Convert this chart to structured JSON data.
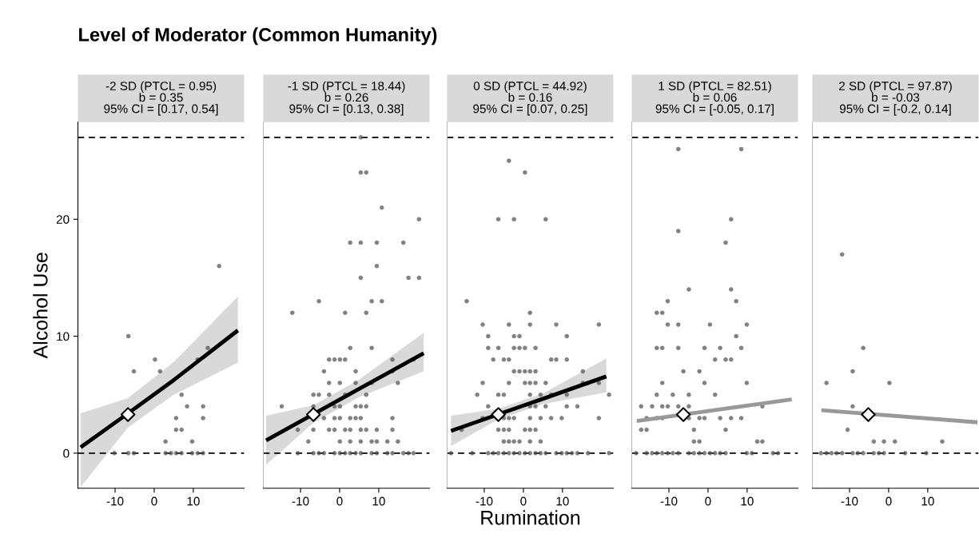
{
  "chart_data": [
    {
      "type": "scatter",
      "title": "-2 SD (PTCL = 0.95)\nb = 0.35\n95% CI = [0.17, 0.54]",
      "annotations": [
        "Level of Moderator (Common Humanity)"
      ],
      "ylabel": "Alcohol Use",
      "xlim": [
        -19.5,
        23
      ],
      "ylim": [
        -3,
        28.3
      ],
      "xticks": [
        -10,
        0,
        10
      ],
      "yticks": [
        0,
        10,
        20
      ],
      "ref_lines": [
        {
          "axis": "y",
          "value": 0,
          "color": "#000000",
          "line_style": "dashed"
        },
        {
          "axis": "y",
          "value": 27,
          "color": "#000000",
          "line_style": "dashed"
        }
      ],
      "series": [
        {
          "type": "scatter",
          "marker": "circle",
          "color": "#4d4d4d",
          "x": [
            16.6,
            -6.6,
            0.2,
            -5.2,
            1.5,
            13.7,
            11.1,
            7.0,
            8.4,
            12.5,
            12.5,
            5.6,
            5.6,
            7.0,
            2.9,
            9.7,
            -10.2,
            -6.6,
            -5.2,
            2.9,
            4.3,
            5.6,
            7.0,
            9.7,
            11.1,
            12.5
          ],
          "values": [
            16,
            10,
            8,
            7,
            7,
            9,
            8,
            5,
            4,
            4,
            3,
            3,
            2,
            2,
            1,
            1,
            0,
            0,
            0,
            0,
            0,
            0,
            0,
            0,
            0,
            0
          ]
        },
        {
          "type": "line",
          "color": "#000000",
          "x": [
            -18.8,
            -6.7,
            5,
            21.4
          ],
          "values": [
            0.5,
            3.4,
            6.25,
            10.5
          ],
          "lower": [
            -2.9,
            2.2,
            5.0,
            7.75
          ],
          "upper": [
            3.4,
            4.7,
            7.8,
            13.4
          ]
        },
        {
          "type": "scatter",
          "marker": "diamond",
          "color": "#ffffff",
          "x": [
            -6.7
          ],
          "values": [
            3.3
          ]
        }
      ]
    },
    {
      "type": "scatter",
      "title": "-1 SD (PTCL = 18.44)\nb = 0.26\n95% CI = [0.13, 0.38]",
      "tick_labels": "x",
      "xlim": [
        -19.5,
        23
      ],
      "ylim": [
        -3,
        28.3
      ],
      "xticks": [
        -10,
        0,
        10
      ],
      "yticks": [
        0,
        10,
        20
      ],
      "ref_lines": [
        {
          "axis": "y",
          "value": 0,
          "color": "#000000",
          "line_style": "dashed"
        },
        {
          "axis": "y",
          "value": 27,
          "color": "#000000",
          "line_style": "dashed"
        }
      ],
      "series": [
        {
          "type": "scatter",
          "marker": "circle",
          "color": "#4d4d4d",
          "x": [
            5.4,
            5.4,
            6.8,
            10.8,
            20.3,
            2.7,
            5.4,
            9.5,
            16.3,
            9.5,
            5.4,
            17.6,
            20.3,
            -5.3,
            8.2,
            10.8,
            -12.1,
            1.4,
            6.8,
            2.7,
            8.2,
            -2.7,
            -1.3,
            0.07,
            1.4,
            13.5,
            18.9,
            -4.0,
            4.1,
            13.5,
            -2.7,
            0.07,
            4.1,
            8.2,
            14.9,
            -6.7,
            -5.3,
            -2.7,
            1.4,
            6.8,
            -14.8,
            -6.7,
            -1.3,
            0.07,
            4.1,
            5.4,
            6.8,
            -4.0,
            -1.3,
            0.07,
            2.7,
            4.1,
            5.4,
            13.5,
            -10.7,
            -6.7,
            -2.7,
            -1.3,
            1.4,
            2.7,
            5.4,
            6.8,
            9.5,
            13.5,
            -8.0,
            0.07,
            2.7,
            5.4,
            8.2,
            9.5,
            12.2,
            14.9,
            -10.7,
            -6.7,
            -5.3,
            -4.0,
            -1.3,
            0.07,
            1.4,
            2.7,
            4.1,
            5.4,
            8.2,
            9.5,
            12.2,
            13.5,
            16.3,
            17.6,
            18.9
          ],
          "values": [
            27,
            24,
            24,
            21,
            20,
            18,
            18,
            18,
            18,
            16,
            15,
            15,
            15,
            13,
            13,
            13,
            12,
            12,
            12,
            9,
            9,
            8,
            8,
            8,
            8,
            8,
            8,
            7,
            7,
            7,
            6,
            6,
            6,
            6,
            6,
            5,
            5,
            5,
            5,
            5,
            4,
            4,
            4,
            4,
            4,
            4,
            4,
            3,
            3,
            3,
            3,
            3,
            3,
            3,
            2,
            2,
            2,
            2,
            2,
            2,
            2,
            2,
            2,
            2,
            1,
            1,
            1,
            1,
            1,
            1,
            1,
            1,
            0,
            0,
            0,
            0,
            0,
            0,
            0,
            0,
            0,
            0,
            0,
            0,
            0,
            0,
            0,
            0,
            0
          ]
        },
        {
          "type": "line",
          "color": "#000000",
          "x": [
            -18.8,
            -6.7,
            5,
            21.5
          ],
          "values": [
            1.1,
            3.34,
            5.5,
            8.55
          ],
          "lower": [
            -1.0,
            2.6,
            4.8,
            7.0
          ],
          "upper": [
            3.2,
            4.1,
            6.3,
            10.3
          ]
        },
        {
          "type": "scatter",
          "marker": "diamond",
          "color": "#ffffff",
          "x": [
            -6.7
          ],
          "values": [
            3.3
          ]
        }
      ]
    },
    {
      "type": "scatter",
      "title": "0 SD (PTCL = 44.92)\nb = 0.16\n95% CI = [0.07, 0.25]",
      "xlabel": "Rumination",
      "tick_labels": "x",
      "xlim": [
        -19.5,
        23
      ],
      "ylim": [
        -3,
        28.3
      ],
      "xticks": [
        -10,
        0,
        10
      ],
      "yticks": [
        0,
        10,
        20
      ],
      "ref_lines": [
        {
          "axis": "y",
          "value": 0,
          "color": "#000000",
          "line_style": "dashed"
        },
        {
          "axis": "y",
          "value": 27,
          "color": "#000000",
          "line_style": "dashed"
        }
      ],
      "series": [
        {
          "type": "scatter",
          "marker": "circle",
          "color": "#4d4d4d",
          "x": [
            -3.7,
            0.4,
            -6.4,
            -2.4,
            5.7,
            -14.5,
            1.7,
            -10.4,
            -3.7,
            1.7,
            8.4,
            19.3,
            -9.0,
            -2.4,
            -1.0,
            11.1,
            -9.0,
            -6.4,
            -2.4,
            -1.0,
            0.4,
            3.1,
            -7.7,
            -5.0,
            -3.7,
            7.1,
            8.4,
            11.1,
            -2.4,
            -1.0,
            0.4,
            1.7,
            3.1,
            15.2,
            -10.4,
            -3.7,
            0.4,
            1.7,
            3.1,
            5.7,
            15.2,
            16.5,
            19.3,
            -11.8,
            -6.4,
            -5.0,
            1.7,
            4.4,
            7.1,
            11.1,
            21.9,
            -9.0,
            1.7,
            3.1,
            5.7,
            11.1,
            13.8,
            -10.4,
            -5.0,
            -3.7,
            -2.4,
            1.7,
            4.4,
            7.1,
            9.8,
            19.3,
            -15.8,
            -6.4,
            -5.0,
            -3.7,
            0.4,
            1.7,
            3.1,
            -5.0,
            -3.7,
            -2.4,
            -1.0,
            1.7,
            4.4,
            -18.5,
            -13.1,
            -9.0,
            -7.7,
            -6.4,
            -5.0,
            -3.7,
            -2.4,
            -1.0,
            0.4,
            1.7,
            3.1,
            4.4,
            5.7,
            8.4,
            9.8,
            11.1,
            12.4,
            13.8,
            16.5,
            21.9
          ],
          "values": [
            25,
            24,
            20,
            20,
            20,
            13,
            12,
            11,
            11,
            11,
            11,
            11,
            10,
            10,
            10,
            10,
            9,
            9,
            9,
            9,
            9,
            9,
            8,
            8,
            8,
            8,
            8,
            8,
            7,
            7,
            7,
            7,
            7,
            7,
            6,
            6,
            6,
            6,
            6,
            6,
            6,
            6,
            6,
            5,
            5,
            5,
            5,
            5,
            5,
            5,
            5,
            4,
            4,
            4,
            4,
            4,
            4,
            3,
            3,
            3,
            3,
            3,
            3,
            3,
            3,
            3,
            2,
            2,
            2,
            2,
            2,
            2,
            2,
            1,
            1,
            1,
            1,
            1,
            1,
            0,
            0,
            0,
            0,
            0,
            0,
            0,
            0,
            0,
            0,
            0,
            0,
            0,
            0,
            0,
            0,
            0,
            0,
            0,
            0,
            0
          ]
        },
        {
          "type": "line",
          "color": "#000000",
          "x": [
            -18.5,
            -6.4,
            5,
            21.2
          ],
          "values": [
            1.9,
            3.32,
            4.65,
            6.56
          ],
          "lower": [
            0.6,
            2.9,
            4.2,
            5.2
          ],
          "upper": [
            3.2,
            3.8,
            5.1,
            8.1
          ]
        },
        {
          "type": "scatter",
          "marker": "diamond",
          "color": "#ffffff",
          "x": [
            -6.4
          ],
          "values": [
            3.3
          ]
        }
      ]
    },
    {
      "type": "scatter",
      "title": "1 SD (PTCL = 82.51)\nb = 0.06\n95% CI = [-0.05, 0.17]",
      "tick_labels": "x",
      "xlim": [
        -19.5,
        23
      ],
      "ylim": [
        -3,
        28.3
      ],
      "xticks": [
        -10,
        0,
        10
      ],
      "yticks": [
        0,
        10,
        20
      ],
      "ref_lines": [
        {
          "axis": "y",
          "value": 0,
          "color": "#000000",
          "line_style": "dashed"
        },
        {
          "axis": "y",
          "value": 27,
          "color": "#000000",
          "line_style": "dashed"
        }
      ],
      "series": [
        {
          "type": "scatter",
          "marker": "circle",
          "color": "#4d4d4d",
          "x": [
            -7.6,
            8.5,
            5.9,
            -7.6,
            4.5,
            -4.9,
            5.9,
            -10.3,
            7.2,
            -13.1,
            -11.7,
            -10.3,
            -7.6,
            0.5,
            9.9,
            7.2,
            -13.1,
            -11.7,
            -7.6,
            -0.9,
            3.1,
            8.5,
            1.8,
            4.5,
            5.9,
            -6.3,
            -2.2,
            -11.7,
            -0.9,
            9.9,
            -13.1,
            -9.0,
            -4.9,
            1.8,
            -17.1,
            -14.3,
            -11.7,
            -10.3,
            -7.6,
            -4.9,
            13.9,
            -15.7,
            -13.1,
            -11.7,
            -4.9,
            -2.2,
            -0.9,
            3.1,
            5.9,
            8.5,
            -17.1,
            -15.7,
            -3.6,
            4.5,
            -3.6,
            -2.2,
            12.6,
            13.9,
            -18.4,
            -15.7,
            -14.3,
            -13.1,
            -11.7,
            -10.3,
            -9.0,
            -7.6,
            -4.9,
            -3.6,
            -2.2,
            -0.9,
            0.5,
            1.8,
            3.1,
            4.5,
            9.9,
            11.2,
            16.6,
            17.9
          ],
          "values": [
            26,
            26,
            20,
            19,
            18,
            14,
            14,
            13,
            13,
            12,
            12,
            11,
            11,
            11,
            11,
            10,
            9,
            9,
            9,
            9,
            9,
            9,
            8,
            8,
            8,
            7,
            7,
            6,
            6,
            6,
            5,
            5,
            5,
            5,
            4,
            4,
            4,
            4,
            4,
            4,
            4,
            3,
            3,
            3,
            3,
            3,
            3,
            3,
            3,
            3,
            2,
            2,
            2,
            2,
            1,
            1,
            1,
            1,
            0,
            0,
            0,
            0,
            0,
            0,
            0,
            0,
            0,
            0,
            0,
            0,
            0,
            0,
            0,
            0,
            0,
            0,
            0,
            0
          ]
        },
        {
          "type": "line",
          "color": "#999999",
          "x": [
            -18.2,
            21.4
          ],
          "values": [
            2.75,
            4.6
          ]
        },
        {
          "type": "scatter",
          "marker": "diamond",
          "color": "#ffffff",
          "x": [
            -6.3
          ],
          "values": [
            3.3
          ]
        }
      ]
    },
    {
      "type": "scatter",
      "title": "2 SD (PTCL = 97.87)\nb = -0.03\n95% CI = [-0.2, 0.14]",
      "tick_labels": "x",
      "xlim": [
        -19.5,
        23
      ],
      "ylim": [
        -3,
        28.3
      ],
      "xticks": [
        -10,
        0,
        10
      ],
      "yticks": [
        0,
        10,
        20
      ],
      "ref_lines": [
        {
          "axis": "y",
          "value": 0,
          "color": "#000000",
          "line_style": "dashed"
        },
        {
          "axis": "y",
          "value": 27,
          "color": "#000000",
          "line_style": "dashed"
        }
      ],
      "series": [
        {
          "type": "scatter",
          "marker": "circle",
          "color": "#4d4d4d",
          "x": [
            -11.9,
            -6.5,
            -9.2,
            -15.9,
            0.2,
            -9.2,
            -10.5,
            -3.8,
            -1.2,
            1.6,
            13.7,
            -17.3,
            -15.9,
            -14.6,
            -13.3,
            -11.9,
            -9.2,
            -7.9,
            -6.5,
            -3.8,
            -2.5,
            -1.2,
            4.2,
            9.6
          ],
          "values": [
            17,
            9,
            7,
            6,
            6,
            4,
            2,
            1,
            1,
            1,
            1,
            0,
            0,
            0,
            0,
            0,
            0,
            0,
            0,
            0,
            0,
            0,
            0,
            0
          ]
        },
        {
          "type": "line",
          "color": "#999999",
          "x": [
            -17.2,
            22.7
          ],
          "values": [
            3.67,
            2.64
          ]
        },
        {
          "type": "scatter",
          "marker": "diamond",
          "color": "#ffffff",
          "x": [
            -5.2
          ],
          "values": [
            3.3
          ]
        }
      ]
    }
  ]
}
